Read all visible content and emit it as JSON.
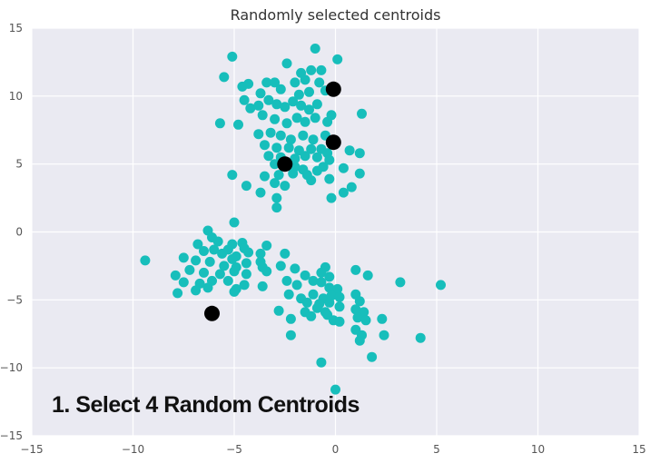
{
  "chart_data": {
    "type": "scatter",
    "title": "Randomly selected centroids",
    "xlabel": "",
    "ylabel": "",
    "xlim": [
      -15,
      15
    ],
    "ylim": [
      -15,
      15
    ],
    "xticks": [
      -15,
      -10,
      -5,
      0,
      5,
      10,
      15
    ],
    "yticks": [
      -15,
      -10,
      -5,
      0,
      5,
      10,
      15
    ],
    "grid": true,
    "background": "#eaeaf2",
    "series": [
      {
        "name": "",
        "color": "#17bebb",
        "marker_size": "small",
        "points": [
          [
            -5.1,
            12.9
          ],
          [
            -5.5,
            11.4
          ],
          [
            -4.6,
            10.7
          ],
          [
            -4.3,
            10.9
          ],
          [
            -3.7,
            10.2
          ],
          [
            -3.4,
            11.0
          ],
          [
            -3.0,
            11.0
          ],
          [
            -2.7,
            10.5
          ],
          [
            -2.4,
            12.4
          ],
          [
            -2.0,
            11.0
          ],
          [
            -1.7,
            11.7
          ],
          [
            -1.5,
            11.2
          ],
          [
            -1.2,
            11.9
          ],
          [
            -1.0,
            13.5
          ],
          [
            -0.7,
            11.9
          ],
          [
            -0.8,
            11.0
          ],
          [
            -0.5,
            10.4
          ],
          [
            -1.3,
            10.3
          ],
          [
            -1.8,
            10.1
          ],
          [
            0.1,
            12.7
          ],
          [
            -4.5,
            9.7
          ],
          [
            -4.2,
            9.1
          ],
          [
            -3.8,
            9.3
          ],
          [
            -3.3,
            9.7
          ],
          [
            -2.9,
            9.4
          ],
          [
            -2.5,
            9.2
          ],
          [
            -2.1,
            9.6
          ],
          [
            -1.7,
            9.3
          ],
          [
            -1.3,
            9.0
          ],
          [
            -0.9,
            9.4
          ],
          [
            -3.6,
            8.6
          ],
          [
            -3.0,
            8.3
          ],
          [
            -2.4,
            8.0
          ],
          [
            -1.9,
            8.4
          ],
          [
            -1.5,
            8.1
          ],
          [
            -1.0,
            8.4
          ],
          [
            -0.4,
            8.1
          ],
          [
            -0.2,
            8.6
          ],
          [
            -5.7,
            8.0
          ],
          [
            -4.8,
            7.9
          ],
          [
            1.3,
            8.7
          ],
          [
            -3.8,
            7.2
          ],
          [
            -3.2,
            7.3
          ],
          [
            -2.7,
            7.1
          ],
          [
            -2.2,
            6.8
          ],
          [
            -1.6,
            7.1
          ],
          [
            -1.1,
            6.8
          ],
          [
            -0.5,
            7.1
          ],
          [
            -3.5,
            6.4
          ],
          [
            -2.9,
            6.2
          ],
          [
            -2.3,
            6.2
          ],
          [
            -1.8,
            6.0
          ],
          [
            -1.2,
            6.1
          ],
          [
            -0.7,
            6.1
          ],
          [
            -0.4,
            5.8
          ],
          [
            -3.3,
            5.6
          ],
          [
            -2.7,
            5.5
          ],
          [
            -2.0,
            5.4
          ],
          [
            -1.5,
            5.6
          ],
          [
            -0.9,
            5.5
          ],
          [
            -0.3,
            5.3
          ],
          [
            0.7,
            6.0
          ],
          [
            1.2,
            5.8
          ],
          [
            -3.0,
            5.0
          ],
          [
            -2.0,
            4.8
          ],
          [
            -1.6,
            4.6
          ],
          [
            -0.6,
            4.8
          ],
          [
            -3.5,
            4.1
          ],
          [
            -2.8,
            4.2
          ],
          [
            -2.1,
            4.3
          ],
          [
            -1.4,
            4.2
          ],
          [
            -0.9,
            4.5
          ],
          [
            0.4,
            4.7
          ],
          [
            1.2,
            4.3
          ],
          [
            -5.1,
            4.2
          ],
          [
            -3.0,
            3.6
          ],
          [
            -2.5,
            3.4
          ],
          [
            -1.2,
            3.8
          ],
          [
            -0.3,
            3.9
          ],
          [
            0.8,
            3.3
          ],
          [
            -4.4,
            3.4
          ],
          [
            -3.7,
            2.9
          ],
          [
            -2.9,
            2.5
          ],
          [
            0.4,
            2.9
          ],
          [
            -0.2,
            2.5
          ],
          [
            -2.9,
            1.8
          ],
          [
            -5.0,
            0.7
          ],
          [
            -6.3,
            0.1
          ],
          [
            -6.1,
            -0.4
          ],
          [
            -6.8,
            -0.9
          ],
          [
            -5.8,
            -0.7
          ],
          [
            -5.1,
            -0.9
          ],
          [
            -4.6,
            -0.8
          ],
          [
            -4.5,
            -1.2
          ],
          [
            -3.4,
            -1.0
          ],
          [
            -6.5,
            -1.4
          ],
          [
            -6.0,
            -1.3
          ],
          [
            -5.6,
            -1.6
          ],
          [
            -5.3,
            -1.3
          ],
          [
            -4.9,
            -1.8
          ],
          [
            -4.3,
            -1.5
          ],
          [
            -3.7,
            -1.6
          ],
          [
            -7.5,
            -1.9
          ],
          [
            -6.9,
            -2.1
          ],
          [
            -6.2,
            -2.2
          ],
          [
            -5.5,
            -2.5
          ],
          [
            -4.9,
            -2.6
          ],
          [
            -4.4,
            -2.3
          ],
          [
            -3.7,
            -2.2
          ],
          [
            -5.1,
            -2.0
          ],
          [
            -3.6,
            -2.6
          ],
          [
            -9.4,
            -2.1
          ],
          [
            -7.9,
            -3.2
          ],
          [
            -7.2,
            -2.8
          ],
          [
            -6.5,
            -3.0
          ],
          [
            -5.7,
            -3.1
          ],
          [
            -5.0,
            -2.9
          ],
          [
            -4.4,
            -3.1
          ],
          [
            -3.4,
            -2.9
          ],
          [
            -7.5,
            -3.7
          ],
          [
            -6.7,
            -3.8
          ],
          [
            -6.1,
            -3.6
          ],
          [
            -5.3,
            -3.6
          ],
          [
            -4.9,
            -4.2
          ],
          [
            -4.5,
            -3.9
          ],
          [
            -7.8,
            -4.5
          ],
          [
            -6.9,
            -4.3
          ],
          [
            -6.3,
            -4.1
          ],
          [
            -5.0,
            -4.4
          ],
          [
            -3.6,
            -4.0
          ],
          [
            -2.5,
            -1.6
          ],
          [
            -2.7,
            -2.5
          ],
          [
            -2.0,
            -2.7
          ],
          [
            -1.5,
            -3.2
          ],
          [
            -2.4,
            -3.6
          ],
          [
            -1.9,
            -3.9
          ],
          [
            -1.1,
            -3.6
          ],
          [
            -0.5,
            -2.6
          ],
          [
            -0.7,
            -3.0
          ],
          [
            -0.3,
            -3.3
          ],
          [
            -0.7,
            -3.7
          ],
          [
            -0.3,
            -4.1
          ],
          [
            0.1,
            -4.2
          ],
          [
            -2.3,
            -4.6
          ],
          [
            -1.7,
            -4.9
          ],
          [
            -1.1,
            -4.6
          ],
          [
            -0.6,
            -4.9
          ],
          [
            -0.2,
            -4.7
          ],
          [
            0.2,
            -4.8
          ],
          [
            -1.4,
            -5.2
          ],
          [
            -0.8,
            -5.3
          ],
          [
            -0.3,
            -5.2
          ],
          [
            -0.9,
            -5.6
          ],
          [
            -0.5,
            -5.9
          ],
          [
            0.2,
            -5.5
          ],
          [
            -1.5,
            -5.9
          ],
          [
            -1.2,
            -6.2
          ],
          [
            -0.4,
            -6.1
          ],
          [
            -0.1,
            -6.5
          ],
          [
            0.2,
            -6.6
          ],
          [
            -2.8,
            -5.8
          ],
          [
            -2.2,
            -6.4
          ],
          [
            1.0,
            -2.8
          ],
          [
            1.6,
            -3.2
          ],
          [
            1.0,
            -4.6
          ],
          [
            1.2,
            -5.1
          ],
          [
            1.0,
            -5.7
          ],
          [
            1.4,
            -5.9
          ],
          [
            1.1,
            -6.3
          ],
          [
            1.5,
            -6.5
          ],
          [
            2.3,
            -6.4
          ],
          [
            1.0,
            -7.2
          ],
          [
            1.3,
            -7.6
          ],
          [
            2.4,
            -7.6
          ],
          [
            1.2,
            -8.0
          ],
          [
            1.8,
            -9.2
          ],
          [
            -0.7,
            -9.6
          ],
          [
            0.0,
            -11.6
          ],
          [
            -2.2,
            -7.6
          ],
          [
            3.2,
            -3.7
          ],
          [
            4.2,
            -7.8
          ],
          [
            5.2,
            -3.9
          ]
        ]
      },
      {
        "name": "",
        "color": "#000000",
        "marker_size": "large",
        "points": [
          [
            -0.1,
            10.5
          ],
          [
            -0.1,
            6.6
          ],
          [
            -2.5,
            5.0
          ],
          [
            -6.1,
            -6.0
          ]
        ]
      }
    ]
  },
  "caption": "1. Select 4 Random Centroids"
}
